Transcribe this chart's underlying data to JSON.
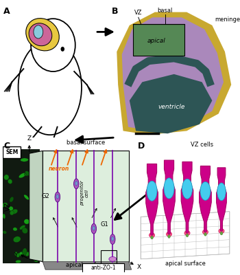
{
  "panel_labels": [
    "A",
    "B",
    "C",
    "D"
  ],
  "colors": {
    "background": "#ffffff",
    "brain_yellow": "#e8c840",
    "brain_pink": "#cc6699",
    "brain_cyan": "#88ccdd",
    "ventricle_dark": "#2d5555",
    "cortex_purple": "#aa88bb",
    "meninges_yellow": "#c8a830",
    "vz_green": "#558855",
    "sem_green": "#4a7a4a",
    "sem_bg": "#1a3a1a",
    "cell_outline": "#6600aa",
    "cell_body_light": "#cc88cc",
    "cell_nucleus": "#6688cc",
    "neuron_orange": "#ee6600",
    "vz_diagram_bg": "#ddeedd",
    "orange": "#ee6600",
    "cell_magenta": "#cc0088",
    "cell_cyan": "#44ccee",
    "cell_magenta2": "#dd44aa",
    "grid_color": "#cccccc",
    "apical_pink": "#ff6688",
    "apical_green": "#66aa44"
  }
}
